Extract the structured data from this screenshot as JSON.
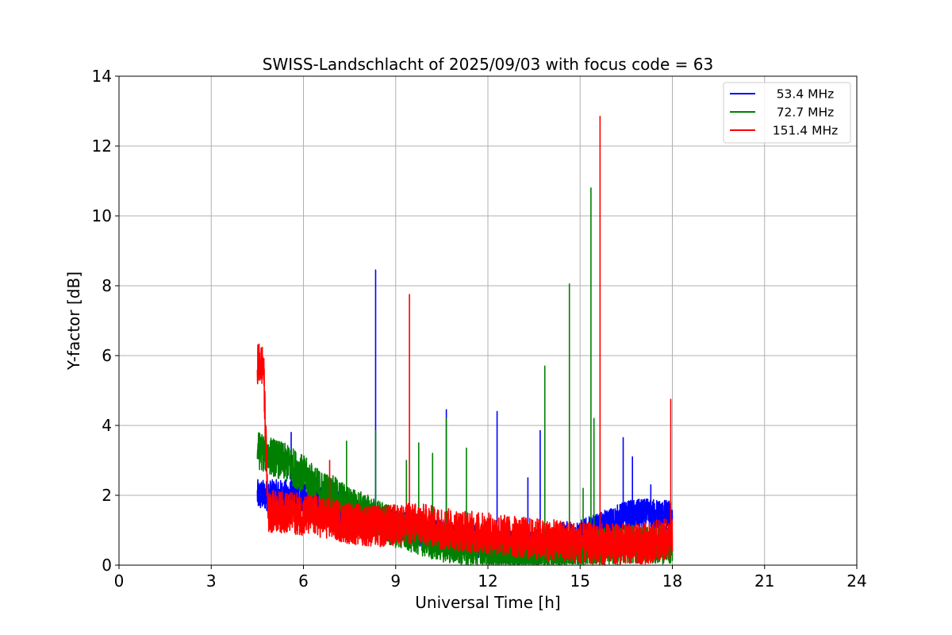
{
  "chart_data": {
    "type": "line",
    "title": "SWISS-Landschlacht of 2025/09/03 with focus code = 63",
    "xlabel": "Universal Time [h]",
    "ylabel": "Y-factor [dB]",
    "xlim": [
      0,
      24
    ],
    "ylim": [
      0,
      14
    ],
    "xticks": [
      0,
      3,
      6,
      9,
      12,
      15,
      18,
      21,
      24
    ],
    "yticks": [
      0,
      2,
      4,
      6,
      8,
      10,
      12,
      14
    ],
    "grid": true,
    "legend_position": "top-right",
    "x_range_observed": [
      4.5,
      18.0
    ],
    "series": [
      {
        "name": "53.4 MHz",
        "color": "#0000ff",
        "points": [
          [
            4.5,
            2.0
          ],
          [
            5.0,
            2.0
          ],
          [
            5.5,
            2.0
          ],
          [
            6.0,
            1.9
          ],
          [
            6.5,
            1.85
          ],
          [
            7.0,
            1.7
          ],
          [
            7.5,
            1.55
          ],
          [
            8.0,
            1.4
          ],
          [
            8.5,
            1.3
          ],
          [
            9.0,
            1.15
          ],
          [
            9.5,
            1.05
          ],
          [
            10.0,
            0.95
          ],
          [
            10.5,
            0.85
          ],
          [
            11.0,
            0.75
          ],
          [
            11.5,
            0.7
          ],
          [
            12.0,
            0.6
          ],
          [
            12.5,
            0.55
          ],
          [
            13.0,
            0.5
          ],
          [
            13.5,
            0.55
          ],
          [
            14.0,
            0.65
          ],
          [
            14.5,
            0.8
          ],
          [
            15.0,
            0.85
          ],
          [
            15.5,
            1.0
          ],
          [
            16.0,
            1.2
          ],
          [
            16.5,
            1.4
          ],
          [
            17.0,
            1.45
          ],
          [
            17.5,
            1.45
          ],
          [
            18.0,
            1.4
          ]
        ],
        "spikes": [
          [
            5.6,
            3.8
          ],
          [
            8.35,
            8.45
          ],
          [
            10.65,
            4.45
          ],
          [
            12.3,
            4.4
          ],
          [
            13.3,
            2.5
          ],
          [
            13.7,
            3.85
          ],
          [
            16.4,
            3.65
          ],
          [
            16.7,
            3.1
          ],
          [
            17.3,
            2.3
          ]
        ]
      },
      {
        "name": "72.7 MHz",
        "color": "#008000",
        "points": [
          [
            4.5,
            3.3
          ],
          [
            5.0,
            3.1
          ],
          [
            5.5,
            2.9
          ],
          [
            6.0,
            2.6
          ],
          [
            6.5,
            2.2
          ],
          [
            7.0,
            2.0
          ],
          [
            7.5,
            1.7
          ],
          [
            8.0,
            1.5
          ],
          [
            8.5,
            1.3
          ],
          [
            9.0,
            1.05
          ],
          [
            9.5,
            0.9
          ],
          [
            10.0,
            0.75
          ],
          [
            10.5,
            0.65
          ],
          [
            11.0,
            0.55
          ],
          [
            11.5,
            0.5
          ],
          [
            12.0,
            0.4
          ],
          [
            12.5,
            0.3
          ],
          [
            13.0,
            0.25
          ],
          [
            13.5,
            0.25
          ],
          [
            14.0,
            0.3
          ],
          [
            14.5,
            0.35
          ],
          [
            15.0,
            0.4
          ],
          [
            15.5,
            0.5
          ],
          [
            16.0,
            0.55
          ],
          [
            16.5,
            0.6
          ],
          [
            17.0,
            0.6
          ],
          [
            17.5,
            0.6
          ],
          [
            18.0,
            0.55
          ]
        ],
        "spikes": [
          [
            7.4,
            3.55
          ],
          [
            8.35,
            3.85
          ],
          [
            9.35,
            3.0
          ],
          [
            9.75,
            3.5
          ],
          [
            10.2,
            3.2
          ],
          [
            10.65,
            4.2
          ],
          [
            11.3,
            3.35
          ],
          [
            13.85,
            5.7
          ],
          [
            14.65,
            8.05
          ],
          [
            15.1,
            2.2
          ],
          [
            15.35,
            10.8
          ],
          [
            15.45,
            4.2
          ]
        ]
      },
      {
        "name": "151.4 MHz",
        "color": "#ff0000",
        "points": [
          [
            4.5,
            5.8
          ],
          [
            4.7,
            5.7
          ],
          [
            4.85,
            1.5
          ],
          [
            5.0,
            1.55
          ],
          [
            5.5,
            1.5
          ],
          [
            6.0,
            1.45
          ],
          [
            6.5,
            1.4
          ],
          [
            7.0,
            1.3
          ],
          [
            7.5,
            1.2
          ],
          [
            8.0,
            1.15
          ],
          [
            8.5,
            1.1
          ],
          [
            9.0,
            1.15
          ],
          [
            9.5,
            1.2
          ],
          [
            10.0,
            1.15
          ],
          [
            10.5,
            1.05
          ],
          [
            11.0,
            1.0
          ],
          [
            11.5,
            0.95
          ],
          [
            12.0,
            0.9
          ],
          [
            12.5,
            0.85
          ],
          [
            13.0,
            0.8
          ],
          [
            13.5,
            0.75
          ],
          [
            14.0,
            0.7
          ],
          [
            14.5,
            0.7
          ],
          [
            15.0,
            0.65
          ],
          [
            15.5,
            0.6
          ],
          [
            16.0,
            0.6
          ],
          [
            16.5,
            0.6
          ],
          [
            17.0,
            0.6
          ],
          [
            17.5,
            0.7
          ],
          [
            18.0,
            0.75
          ]
        ],
        "spikes": [
          [
            6.85,
            3.0
          ],
          [
            9.45,
            7.75
          ],
          [
            15.65,
            12.85
          ],
          [
            17.95,
            4.75
          ]
        ]
      }
    ]
  }
}
